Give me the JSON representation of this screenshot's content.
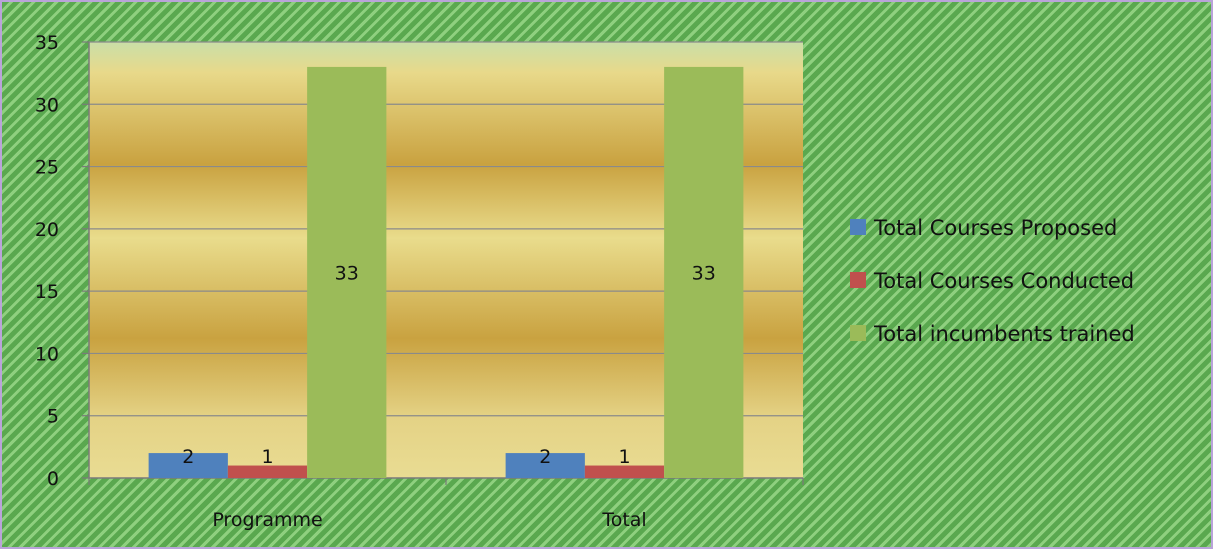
{
  "chart_data": {
    "type": "bar",
    "title": "",
    "xlabel": "",
    "ylabel": "",
    "categories": [
      "Programme",
      "Total"
    ],
    "series": [
      {
        "name": "Total Courses Proposed",
        "values": [
          2,
          2
        ],
        "color": "#4f81bd"
      },
      {
        "name": "Total Courses Conducted",
        "values": [
          1,
          1
        ],
        "color": "#c0504d"
      },
      {
        "name": "Total incumbents trained",
        "values": [
          33,
          33
        ],
        "color": "#9bbb59"
      }
    ],
    "ylim": [
      0,
      35
    ],
    "yticks": [
      0,
      5,
      10,
      15,
      20,
      25,
      30,
      35
    ],
    "grid": true,
    "legend_position": "right",
    "data_labels": true
  }
}
